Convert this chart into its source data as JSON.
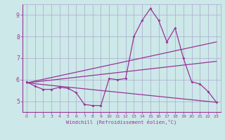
{
  "xlabel": "Windchill (Refroidissement éolien,°C)",
  "bg_color": "#cce8e8",
  "grid_color": "#aaaacc",
  "line_color": "#993399",
  "xlim": [
    -0.5,
    23.5
  ],
  "ylim": [
    4.5,
    9.5
  ],
  "xticks": [
    0,
    1,
    2,
    3,
    4,
    5,
    6,
    7,
    8,
    9,
    10,
    11,
    12,
    13,
    14,
    15,
    16,
    17,
    18,
    19,
    20,
    21,
    22,
    23
  ],
  "yticks": [
    5,
    6,
    7,
    8,
    9
  ],
  "line1_x": [
    0,
    1,
    2,
    3,
    4,
    5,
    6,
    7,
    8,
    9,
    10,
    11,
    12,
    13,
    14,
    15,
    16,
    17,
    18,
    19,
    20,
    21,
    22,
    23
  ],
  "line1_y": [
    5.9,
    5.7,
    5.55,
    5.55,
    5.65,
    5.6,
    5.4,
    4.85,
    4.8,
    4.8,
    6.05,
    6.0,
    6.05,
    8.0,
    8.75,
    9.3,
    8.75,
    7.75,
    8.4,
    7.0,
    5.9,
    5.8,
    5.45,
    4.95
  ],
  "line2_x": [
    0,
    23
  ],
  "line2_y": [
    5.85,
    7.75
  ],
  "line3_x": [
    0,
    23
  ],
  "line3_y": [
    5.85,
    6.85
  ],
  "line4_x": [
    0,
    23
  ],
  "line4_y": [
    5.85,
    4.95
  ]
}
